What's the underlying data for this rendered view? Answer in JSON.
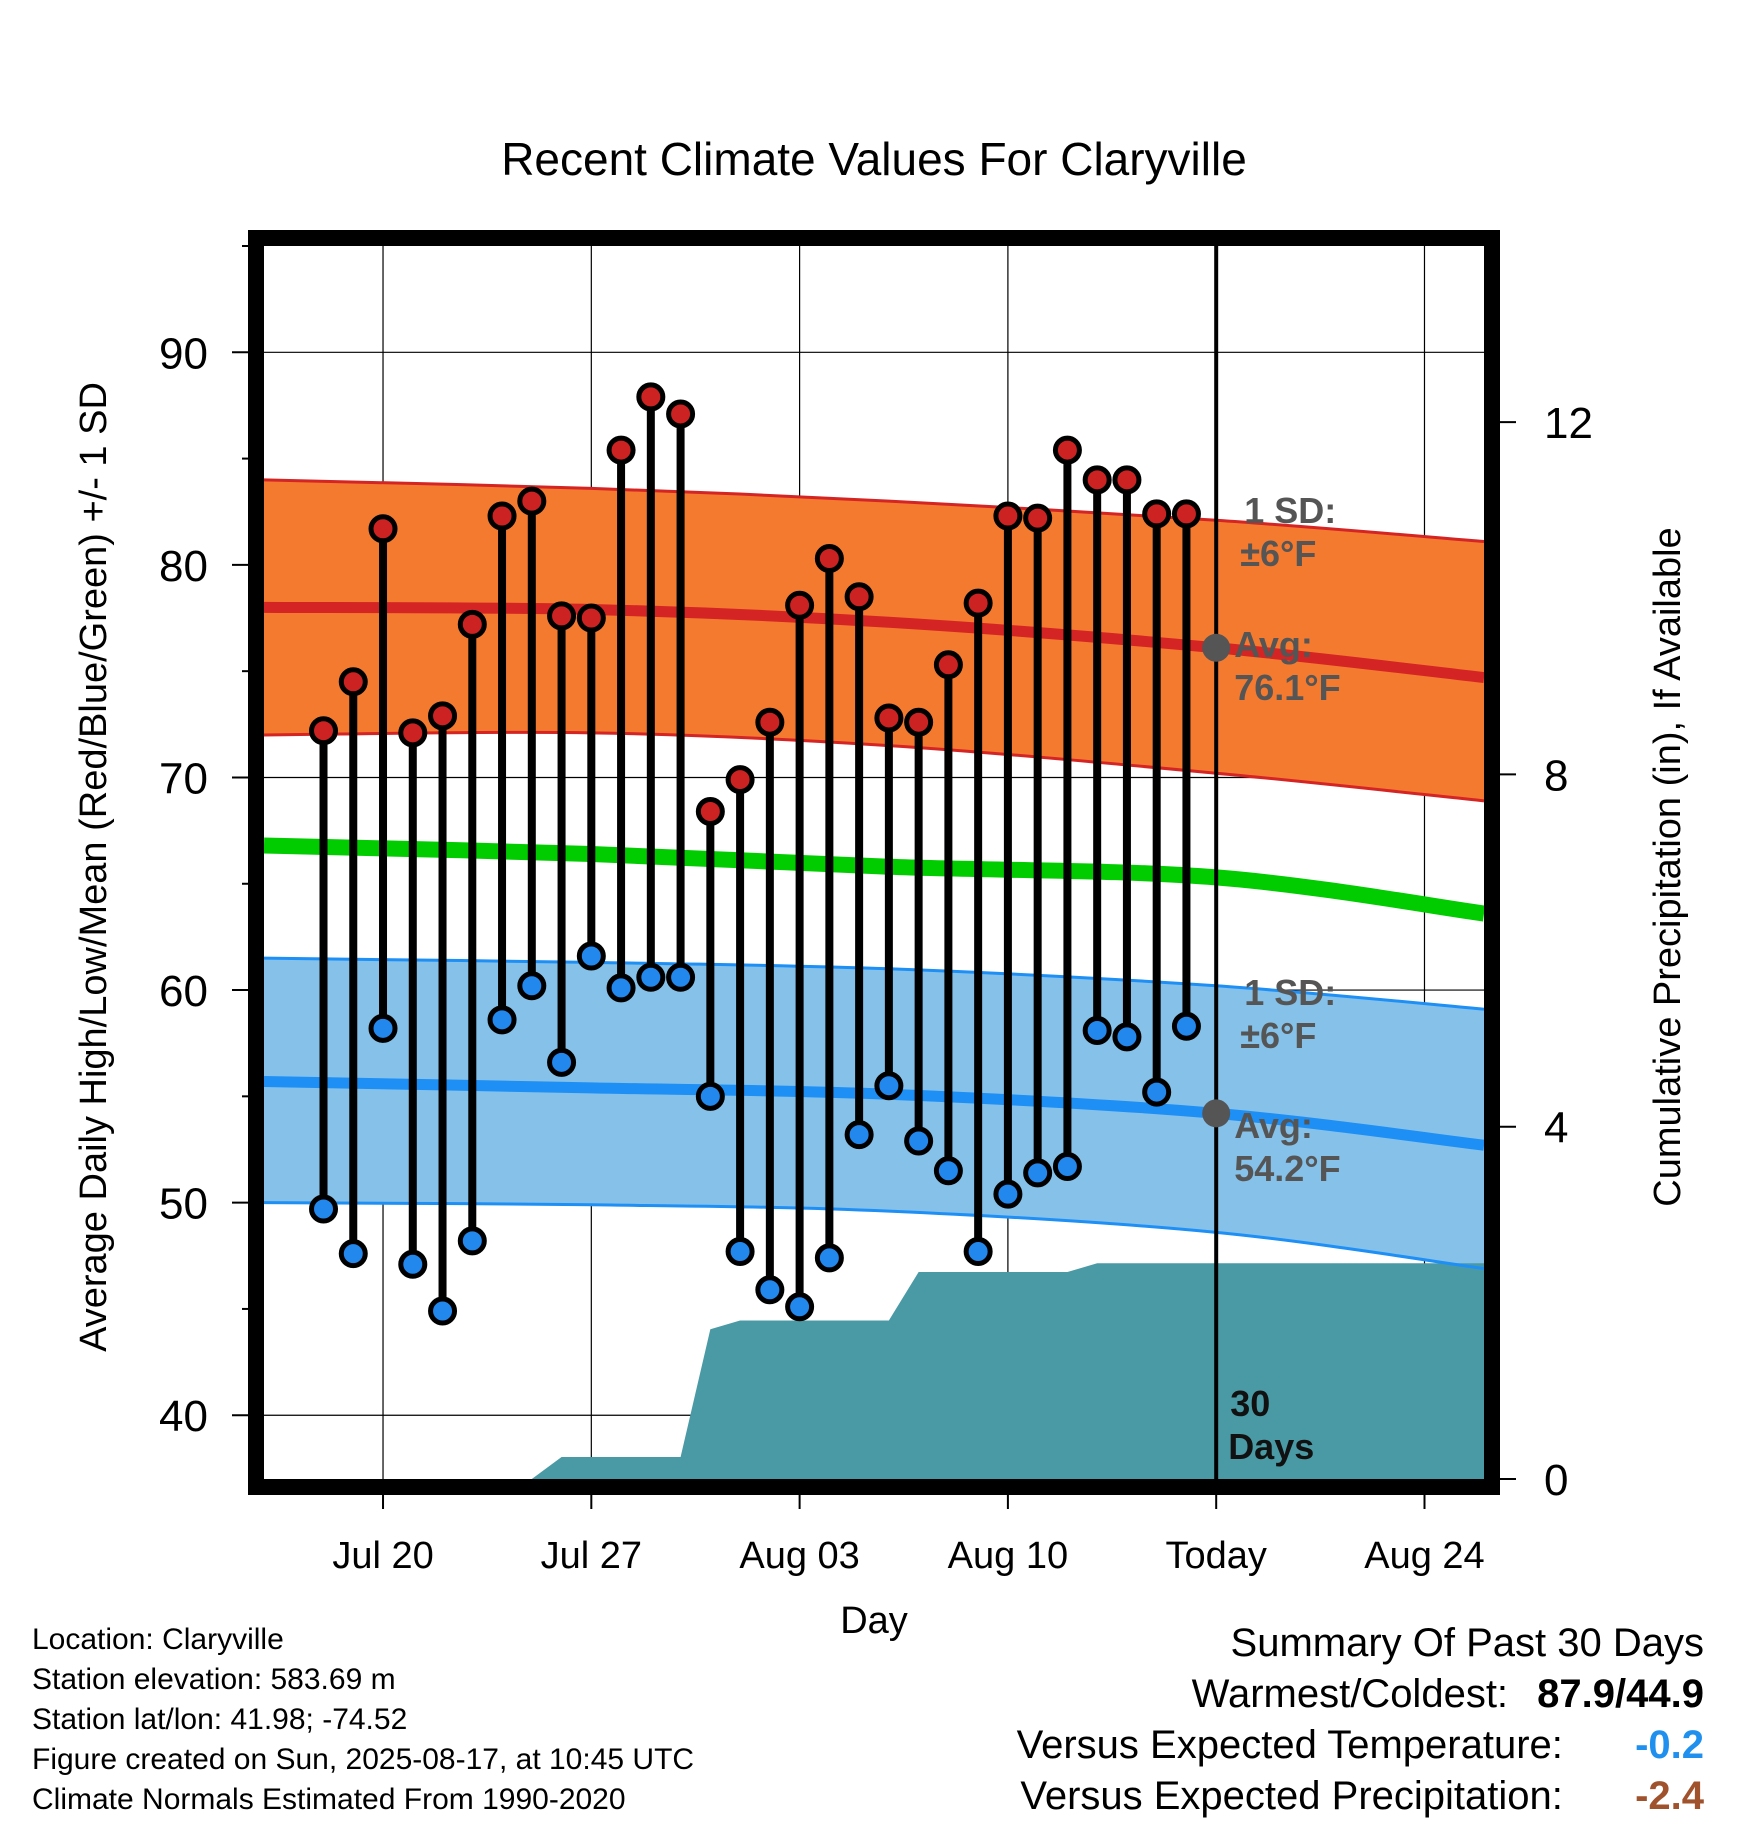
{
  "chart_data": {
    "type": "line",
    "title": "Recent Climate Values For Claryville",
    "xlabel": "Day",
    "ylabel": "Average Daily High/Low/Mean (Red/Blue/Green) +/- 1 SD",
    "y2label": "Cumulative Precipitation (in), If Available",
    "ylim": [
      37,
      95
    ],
    "y2lim": [
      0,
      14
    ],
    "yticks": [
      40,
      50,
      60,
      70,
      80,
      90
    ],
    "y2ticks": [
      0,
      4,
      8,
      12
    ],
    "xlim": [
      "2025-07-16",
      "2025-08-26"
    ],
    "xtick_labels": [
      "Jul 20",
      "Jul 27",
      "Aug 03",
      "Aug 10",
      "Today",
      "Aug 24"
    ],
    "xtick_dates": [
      "2025-07-20",
      "2025-07-27",
      "2025-08-03",
      "2025-08-10",
      "2025-08-17",
      "2025-08-24"
    ],
    "grid": true,
    "today": "2025-08-17",
    "dates": [
      "2025-07-18",
      "2025-07-19",
      "2025-07-20",
      "2025-07-21",
      "2025-07-22",
      "2025-07-23",
      "2025-07-24",
      "2025-07-25",
      "2025-07-26",
      "2025-07-27",
      "2025-07-28",
      "2025-07-29",
      "2025-07-30",
      "2025-07-31",
      "2025-08-01",
      "2025-08-02",
      "2025-08-03",
      "2025-08-04",
      "2025-08-05",
      "2025-08-06",
      "2025-08-07",
      "2025-08-08",
      "2025-08-09",
      "2025-08-10",
      "2025-08-11",
      "2025-08-12",
      "2025-08-13",
      "2025-08-14",
      "2025-08-15",
      "2025-08-16"
    ],
    "series": [
      {
        "name": "High",
        "color": "#cc2222",
        "values": [
          72.2,
          74.5,
          81.7,
          72.1,
          72.9,
          77.2,
          82.3,
          83.0,
          77.6,
          77.5,
          85.4,
          87.9,
          87.1,
          68.4,
          69.9,
          72.6,
          78.1,
          80.3,
          78.5,
          72.8,
          72.6,
          75.3,
          78.2,
          82.3,
          82.2,
          85.4,
          84.0,
          84.0,
          82.4,
          82.4
        ]
      },
      {
        "name": "Low",
        "color": "#2288ee",
        "values": [
          49.7,
          47.6,
          58.2,
          47.1,
          44.9,
          48.2,
          58.6,
          60.2,
          56.6,
          61.6,
          60.1,
          60.6,
          60.6,
          55.0,
          47.7,
          45.9,
          45.1,
          47.4,
          53.2,
          55.5,
          52.9,
          51.5,
          47.7,
          50.4,
          51.4,
          51.7,
          58.1,
          57.8,
          55.2,
          58.3
        ]
      }
    ],
    "normals": {
      "dates": [
        "2025-07-16",
        "2025-07-27",
        "2025-08-06",
        "2025-08-17",
        "2025-08-26"
      ],
      "high_avg": [
        78.0,
        77.9,
        77.3,
        76.1,
        74.7
      ],
      "high_upper": [
        84.0,
        83.6,
        83.0,
        82.1,
        81.1
      ],
      "high_lower": [
        72.0,
        72.1,
        71.5,
        70.2,
        68.9
      ],
      "low_avg": [
        55.7,
        55.4,
        55.1,
        54.2,
        52.7
      ],
      "low_upper": [
        61.5,
        61.3,
        61.0,
        60.2,
        59.1
      ],
      "low_lower": [
        50.0,
        49.9,
        49.6,
        48.6,
        46.9
      ],
      "mean": [
        66.8,
        66.4,
        65.8,
        65.3,
        63.6
      ]
    },
    "precipitation": {
      "dates": [
        "2025-07-16",
        "2025-07-25",
        "2025-07-26",
        "2025-07-29",
        "2025-07-30",
        "2025-07-31",
        "2025-08-01",
        "2025-08-04",
        "2025-08-05",
        "2025-08-06",
        "2025-08-07",
        "2025-08-10",
        "2025-08-12",
        "2025-08-13",
        "2025-08-17",
        "2025-08-26"
      ],
      "values": [
        0,
        0,
        0.25,
        0.25,
        0.25,
        1.7,
        1.8,
        1.8,
        1.8,
        1.8,
        2.35,
        2.35,
        2.35,
        2.45,
        2.45,
        2.45
      ]
    },
    "annotations": {
      "high_sd_label": "1 SD:",
      "high_sd_value": "±6°F",
      "high_avg_label": "Avg:",
      "high_avg_value": "76.1°F",
      "low_sd_label": "1 SD:",
      "low_sd_value": "±6°F",
      "low_avg_label": "Avg:",
      "low_avg_value": "54.2°F",
      "window_label_1": "30",
      "window_label_2": "Days"
    },
    "colors": {
      "high_band": "#f47a30",
      "high_line": "#d42424",
      "low_band": "#85c1e8",
      "low_line": "#1e8ff5",
      "mean_line": "#00cc00",
      "precip": "#4a9aa5",
      "annotation": "#555555",
      "point_high": "#cc2222",
      "point_low": "#2288ee"
    }
  },
  "footer": {
    "location": "Location: Claryville",
    "elevation": "Station elevation: 583.69 m",
    "latlon": "Station lat/lon: 41.98; -74.52",
    "created": "Figure created on Sun, 2025-08-17, at 10:45 UTC",
    "normals": "Climate Normals Estimated From 1990-2020"
  },
  "summary": {
    "title": "Summary Of Past 30 Days",
    "warm_cold_label": "Warmest/Coldest:",
    "warm_cold_value": "87.9/44.9",
    "temp_label": "Versus Expected Temperature:",
    "temp_value": "-0.2",
    "temp_color": "#2090ee",
    "precip_label": "Versus Expected Precipitation:",
    "precip_value": "-2.4",
    "precip_color": "#a0522d"
  }
}
